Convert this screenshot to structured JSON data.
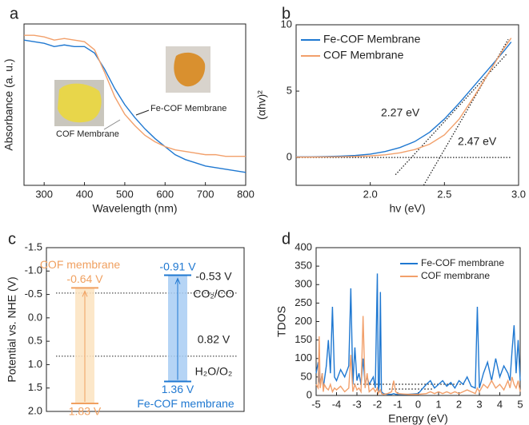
{
  "chart_data": [
    {
      "type": "line",
      "panel": "a",
      "xlabel": "Wavelength (nm)",
      "ylabel": "Absorbance (a. u.)",
      "xlim": [
        250,
        800
      ],
      "ylim": [
        0,
        1
      ],
      "xticks": [
        300,
        400,
        500,
        600,
        700,
        800
      ],
      "x": [
        250,
        275,
        300,
        325,
        350,
        375,
        400,
        425,
        450,
        475,
        500,
        525,
        550,
        575,
        600,
        625,
        650,
        675,
        700,
        725,
        750,
        775,
        800
      ],
      "series": [
        {
          "name": "Fe-COF Membrane",
          "color": "#1f78d1",
          "values": [
            0.9,
            0.89,
            0.88,
            0.86,
            0.87,
            0.86,
            0.86,
            0.82,
            0.72,
            0.6,
            0.5,
            0.42,
            0.35,
            0.29,
            0.24,
            0.19,
            0.16,
            0.14,
            0.12,
            0.11,
            0.1,
            0.09,
            0.08
          ]
        },
        {
          "name": "COF Membrane",
          "color": "#f2a06b",
          "values": [
            0.93,
            0.93,
            0.92,
            0.9,
            0.91,
            0.9,
            0.89,
            0.84,
            0.7,
            0.55,
            0.44,
            0.37,
            0.31,
            0.27,
            0.24,
            0.22,
            0.21,
            0.2,
            0.19,
            0.19,
            0.18,
            0.18,
            0.18
          ]
        }
      ]
    },
    {
      "type": "line",
      "panel": "b",
      "xlabel": "hv (eV)",
      "ylabel": "(αhv)²",
      "xlim": [
        1.5,
        3.0
      ],
      "ylim": [
        -2.1,
        10
      ],
      "xticks": [
        {
          "value": 2,
          "label": "2.0"
        },
        2.5,
        {
          "value": 3,
          "label": "3.0"
        }
      ],
      "yticks": [
        0,
        5,
        10
      ],
      "x": [
        1.5,
        1.6,
        1.7,
        1.8,
        1.9,
        2.0,
        2.1,
        2.2,
        2.3,
        2.4,
        2.5,
        2.6,
        2.7,
        2.8,
        2.9,
        2.95
      ],
      "series": [
        {
          "name": "Fe-COF Membrane",
          "color": "#1f78d1",
          "values": [
            0.05,
            0.05,
            0.07,
            0.1,
            0.15,
            0.25,
            0.45,
            0.75,
            1.2,
            1.9,
            2.9,
            4.1,
            5.4,
            6.7,
            8.0,
            8.7
          ]
        },
        {
          "name": "COF Membrane",
          "color": "#f2a06b",
          "values": [
            0.03,
            0.03,
            0.04,
            0.05,
            0.08,
            0.12,
            0.2,
            0.35,
            0.6,
            1.0,
            1.7,
            2.9,
            4.6,
            6.4,
            8.2,
            9.0
          ]
        }
      ],
      "tangents": [
        {
          "x": [
            2.17,
            2.92
          ],
          "y": [
            -1.3,
            7.8
          ]
        },
        {
          "x": [
            2.36,
            2.93
          ],
          "y": [
            -2.1,
            8.9
          ]
        },
        {
          "x": [
            1.5,
            2.95
          ],
          "y": [
            0,
            0
          ]
        }
      ],
      "annotations": [
        "2.27 eV",
        "2.47 eV"
      ]
    },
    {
      "type": "band",
      "panel": "c",
      "ylabel": "Potential vs. NHE (V)",
      "ylim": [
        -1.5,
        2.0
      ],
      "y_inverted": true,
      "yticks": [
        -1.5,
        {
          "value": -1,
          "label": "-1.0"
        },
        -0.5,
        {
          "value": 0,
          "label": "0.0"
        },
        0.5,
        {
          "value": 1,
          "label": "1.0"
        },
        1.5,
        {
          "value": 2,
          "label": "2.0"
        }
      ],
      "bands": [
        {
          "name": "COF membrane",
          "color": "#f0a060",
          "fill": "#fbe3c0",
          "top": -0.64,
          "bottom": 1.83,
          "top_label": "-0.64 V",
          "bottom_label": "1.83 V"
        },
        {
          "name": "Fe-COF membrane",
          "color": "#1f78d1",
          "fill": "#a8cdf3",
          "top": -0.91,
          "bottom": 1.36,
          "top_label": "-0.91 V",
          "bottom_label": "1.36 V"
        }
      ],
      "references": [
        {
          "value": -0.53,
          "label": "-0.53 V",
          "name": "CO₂/CO"
        },
        {
          "value": 0.82,
          "label": "0.82 V",
          "name": "H₂O/O₂"
        }
      ]
    },
    {
      "type": "line",
      "panel": "d",
      "xlabel": "Energy (eV)",
      "ylabel": "TDOS",
      "xlim": [
        -5,
        5
      ],
      "ylim": [
        0,
        400
      ],
      "xticks": [
        -5,
        -4,
        -3,
        -2,
        -1,
        0,
        1,
        2,
        3,
        4,
        5
      ],
      "yticks": [
        0,
        50,
        100,
        150,
        200,
        250,
        300,
        350,
        400
      ],
      "x": [
        -5,
        -4.9,
        -4.85,
        -4.8,
        -4.7,
        -4.65,
        -4.6,
        -4.5,
        -4.4,
        -4.3,
        -4.2,
        -4.1,
        -4.0,
        -3.8,
        -3.6,
        -3.4,
        -3.3,
        -3.2,
        -3.1,
        -3.0,
        -2.9,
        -2.8,
        -2.7,
        -2.6,
        -2.5,
        -2.4,
        -2.2,
        -2.1,
        -2.0,
        -1.95,
        -1.9,
        -1.85,
        -1.8,
        -1.7,
        -1.5,
        -1.3,
        -1.2,
        -1.1,
        -1.0,
        -0.5,
        0,
        0.4,
        0.6,
        0.8,
        1.0,
        1.2,
        1.4,
        1.6,
        1.8,
        2.0,
        2.2,
        2.4,
        2.6,
        2.8,
        2.9,
        3.0,
        3.2,
        3.4,
        3.6,
        3.8,
        4.0,
        4.2,
        4.4,
        4.5,
        4.6,
        4.7,
        4.8,
        4.9,
        5.0
      ],
      "legend": "upper right",
      "series": [
        {
          "name": "Fe-COF membrane",
          "color": "#1f78d1",
          "values": [
            60,
            90,
            40,
            30,
            60,
            20,
            40,
            80,
            150,
            60,
            240,
            50,
            40,
            70,
            50,
            80,
            290,
            30,
            130,
            40,
            60,
            30,
            100,
            30,
            50,
            30,
            50,
            20,
            330,
            10,
            30,
            280,
            10,
            5,
            3,
            3,
            5,
            3,
            3,
            3,
            5,
            30,
            40,
            20,
            30,
            40,
            25,
            35,
            20,
            40,
            30,
            50,
            25,
            20,
            240,
            20,
            60,
            90,
            40,
            100,
            50,
            80,
            60,
            40,
            120,
            190,
            60,
            150,
            40
          ]
        },
        {
          "name": "COF membrane",
          "color": "#f2a06b",
          "values": [
            30,
            20,
            160,
            20,
            60,
            10,
            30,
            20,
            15,
            30,
            10,
            20,
            15,
            25,
            10,
            20,
            110,
            10,
            30,
            15,
            20,
            10,
            215,
            20,
            60,
            10,
            20,
            10,
            20,
            5,
            10,
            15,
            5,
            3,
            5,
            10,
            40,
            10,
            5,
            3,
            3,
            5,
            10,
            5,
            10,
            5,
            10,
            5,
            10,
            5,
            10,
            15,
            10,
            5,
            20,
            10,
            30,
            20,
            40,
            20,
            30,
            15,
            40,
            20,
            50,
            30,
            20,
            40,
            10
          ]
        }
      ]
    }
  ]
}
